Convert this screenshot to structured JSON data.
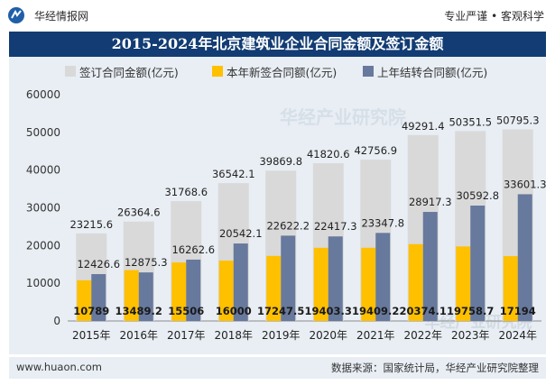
{
  "header": {
    "brand": "华经情报网",
    "slogan": "专业严谨 • 客观科学"
  },
  "chart_title": "2015-2024年北京建筑业企业合同金额及签订金额",
  "footer": {
    "url": "www.huaon.com",
    "source": "数据来源：国家统计局，华经产业研究院整理"
  },
  "watermarks": {
    "mid": "华经产业研究院",
    "bottom": "华经产业研究院"
  },
  "colors": {
    "total": "#d9d9d9",
    "new": "#ffc000",
    "carry": "#67799c",
    "title_bg": "#123c73",
    "panel_bg": "#e8eef4"
  },
  "icons": {
    "logo": "huajing-logo-icon"
  },
  "chart_data": {
    "type": "bar",
    "title": "2015-2024年北京建筑业企业合同金额及签订金额",
    "xlabel": "",
    "ylabel": "",
    "ylim": [
      0,
      60000
    ],
    "yticks": [
      0,
      10000,
      20000,
      30000,
      40000,
      50000,
      60000
    ],
    "grid": false,
    "legend_position": "top",
    "categories": [
      "2015年",
      "2016年",
      "2017年",
      "2018年",
      "2019年",
      "2020年",
      "2021年",
      "2022年",
      "2023年",
      "2024年"
    ],
    "series": [
      {
        "name": "签订合同金额(亿元)",
        "color": "#d9d9d9",
        "values": [
          23215.6,
          26364.6,
          31768.6,
          36542.1,
          39869.8,
          41820.6,
          42756.9,
          49291.4,
          50351.5,
          50795.3
        ],
        "labels": [
          "23215.6",
          "26364.6",
          "31768.6",
          "36542.1",
          "39869.8",
          "41820.6",
          "42756.9",
          "49291.4",
          "50351.5",
          "50795.3"
        ]
      },
      {
        "name": "本年新签合同额(亿元)",
        "color": "#ffc000",
        "values": [
          10789,
          13489.2,
          15506,
          16000,
          17247.5,
          19403.3,
          19409.2,
          20374.1,
          19758.7,
          17194
        ],
        "labels": [
          "10789",
          "13489.2",
          "15506",
          "16000",
          "17247.5",
          "19403.3",
          "19409.2",
          "20374.1",
          "19758.7",
          "17194"
        ]
      },
      {
        "name": "上年结转合同额(亿元)",
        "color": "#67799c",
        "values": [
          12426.6,
          12875.3,
          16262.6,
          20542.1,
          22622.2,
          22417.3,
          23347.8,
          28917.3,
          30592.8,
          33601.3
        ],
        "labels": [
          "12426.6",
          "12875.3",
          "16262.6",
          "20542.1",
          "22622.2",
          "22417.3",
          "23347.8",
          "28917.3",
          "30592.8",
          "33601.3"
        ]
      }
    ]
  }
}
